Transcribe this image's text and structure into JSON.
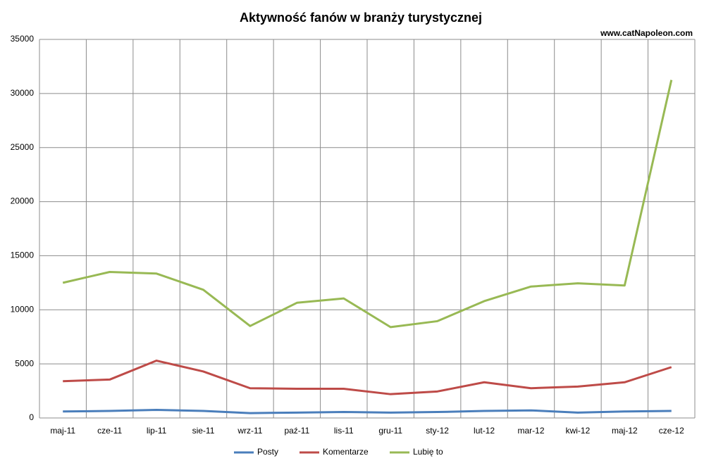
{
  "chart_data": {
    "type": "line",
    "title": "Aktywność fanów w branży turystycznej",
    "annotation": "www.catNapoleon.com",
    "categories": [
      "maj-11",
      "cze-11",
      "lip-11",
      "sie-11",
      "wrz-11",
      "paź-11",
      "lis-11",
      "gru-11",
      "sty-12",
      "lut-12",
      "mar-12",
      "kwi-12",
      "maj-12",
      "cze-12"
    ],
    "series": [
      {
        "name": "Posty",
        "color": "#4a7ebb",
        "values": [
          600,
          650,
          750,
          650,
          450,
          500,
          550,
          500,
          550,
          650,
          700,
          500,
          600,
          650
        ]
      },
      {
        "name": "Komentarze",
        "color": "#be4b48",
        "values": [
          3400,
          3550,
          5300,
          4300,
          2750,
          2700,
          2700,
          2200,
          2450,
          3300,
          2750,
          2900,
          3300,
          4700
        ]
      },
      {
        "name": "Lubię to",
        "color": "#98b954",
        "values": [
          12500,
          13500,
          13350,
          11850,
          8500,
          10650,
          11050,
          8400,
          8950,
          10800,
          12150,
          12450,
          12250,
          31250
        ]
      }
    ],
    "ylim": [
      0,
      35000
    ],
    "yticks": [
      0,
      5000,
      10000,
      15000,
      20000,
      25000,
      30000,
      35000
    ],
    "grid": true,
    "legend": "bottom"
  }
}
